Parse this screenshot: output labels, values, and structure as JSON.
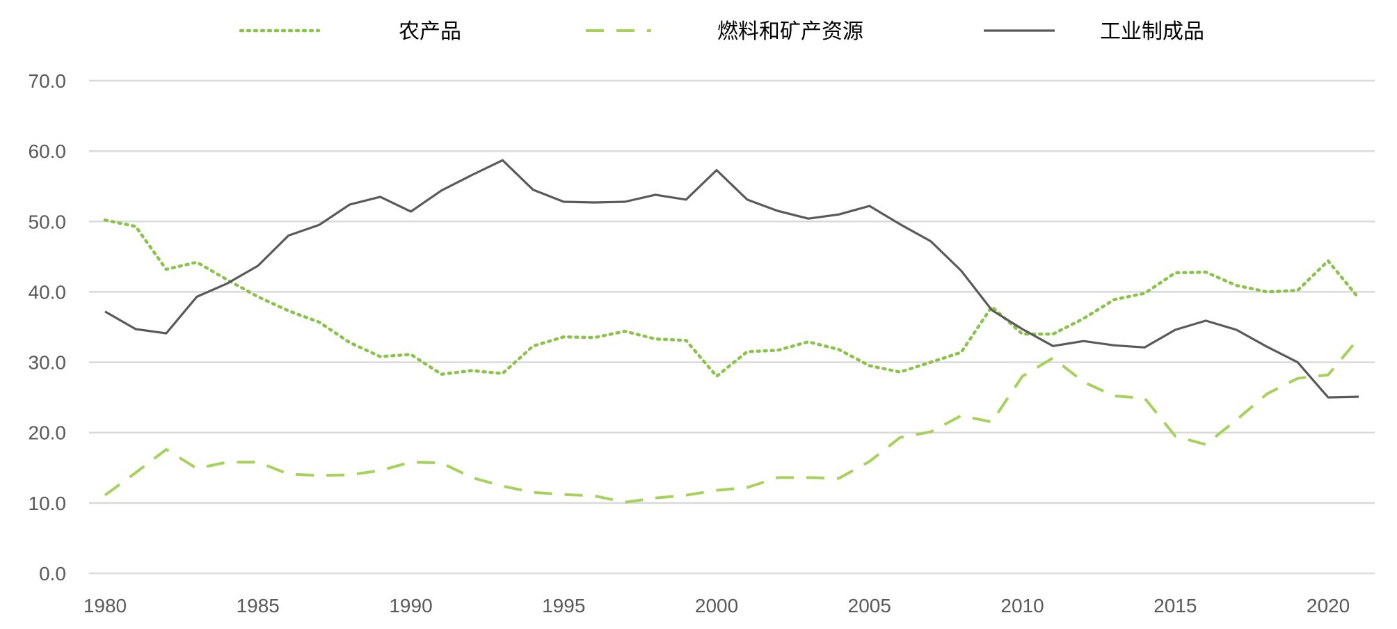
{
  "chart_data": {
    "type": "line",
    "title": "",
    "xlabel": "",
    "ylabel": "",
    "xlim": [
      1980,
      2021
    ],
    "ylim": [
      0,
      70
    ],
    "x_ticks": [
      1980,
      1985,
      1990,
      1995,
      2000,
      2005,
      2010,
      2015,
      2020
    ],
    "y_ticks": [
      0,
      10,
      20,
      30,
      40,
      50,
      60,
      70
    ],
    "y_tick_labels": [
      "0.0",
      "10.0",
      "20.0",
      "30.0",
      "40.0",
      "50.0",
      "60.0",
      "70.0"
    ],
    "grid": "horizontal",
    "legend_position": "top",
    "x": [
      1980,
      1981,
      1982,
      1983,
      1984,
      1985,
      1986,
      1987,
      1988,
      1989,
      1990,
      1991,
      1992,
      1993,
      1994,
      1995,
      1996,
      1997,
      1998,
      1999,
      2000,
      2001,
      2002,
      2003,
      2004,
      2005,
      2006,
      2007,
      2008,
      2009,
      2010,
      2011,
      2012,
      2013,
      2014,
      2015,
      2016,
      2017,
      2018,
      2019,
      2020,
      2021
    ],
    "series": [
      {
        "name": "农产品",
        "style": "dotted",
        "color": "#8BC34A",
        "values": [
          50.2,
          49.3,
          43.2,
          44.2,
          41.7,
          39.3,
          37.3,
          35.7,
          32.8,
          30.8,
          31.1,
          28.3,
          28.8,
          28.4,
          32.3,
          33.6,
          33.5,
          34.4,
          33.3,
          33.1,
          28.0,
          31.5,
          31.7,
          32.9,
          31.8,
          29.5,
          28.6,
          30.0,
          31.4,
          37.9,
          34.0,
          34.0,
          36.2,
          38.9,
          39.8,
          42.7,
          42.8,
          40.9,
          40.0,
          40.2,
          44.4,
          39.1
        ]
      },
      {
        "name": "燃料和矿产资源",
        "style": "dashed",
        "color": "#A6D15A",
        "values": [
          11.1,
          14.3,
          17.6,
          14.9,
          15.8,
          15.8,
          14.1,
          13.9,
          14.0,
          14.6,
          15.8,
          15.7,
          13.6,
          12.4,
          11.5,
          11.2,
          11.0,
          10.1,
          10.7,
          11.1,
          11.8,
          12.2,
          13.6,
          13.6,
          13.5,
          15.9,
          19.3,
          20.1,
          22.4,
          21.5,
          28.0,
          30.6,
          27.2,
          25.2,
          24.9,
          19.5,
          18.3,
          21.8,
          25.5,
          27.7,
          28.2,
          33.4
        ]
      },
      {
        "name": "工业制成品",
        "style": "solid",
        "color": "#595959",
        "values": [
          37.2,
          34.7,
          34.1,
          39.3,
          41.2,
          43.7,
          48.0,
          49.5,
          52.4,
          53.5,
          51.4,
          54.4,
          56.6,
          58.7,
          54.5,
          52.8,
          52.7,
          52.8,
          53.8,
          53.1,
          57.3,
          53.1,
          51.5,
          50.4,
          51.0,
          52.2,
          49.6,
          47.2,
          43.0,
          37.4,
          34.7,
          32.3,
          33.0,
          32.4,
          32.1,
          34.6,
          35.9,
          34.6,
          32.2,
          30.0,
          25.0,
          25.1
        ]
      }
    ]
  }
}
